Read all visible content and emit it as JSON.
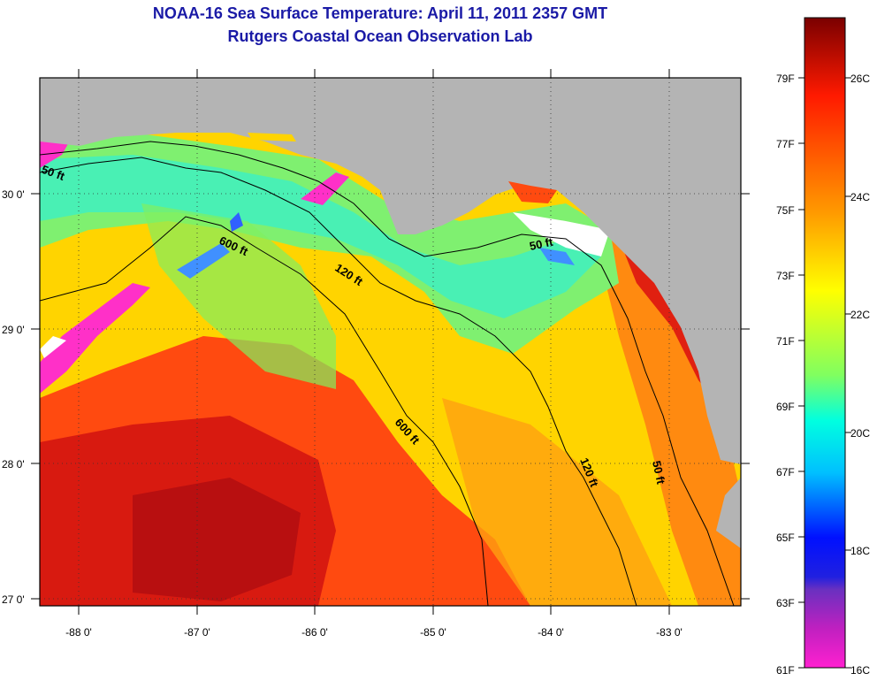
{
  "title": "NOAA-16 Sea Surface Temperature:  April 11, 2011 2357 GMT",
  "subtitle": "Rutgers Coastal Ocean Observation Lab",
  "map": {
    "lon_labels": [
      "-88 0'",
      "-87 0'",
      "-86 0'",
      "-85 0'",
      "-84 0'",
      "-83 0'"
    ],
    "lat_labels": [
      "30 0'",
      "29 0'",
      "28 0'",
      "27 0'"
    ],
    "contours": [
      "50 ft",
      "600 ft",
      "120 ft",
      "50 ft",
      "600 ft",
      "120 ft",
      "50 ft"
    ]
  },
  "colorbar": {
    "fahrenheit": [
      "79F",
      "77F",
      "75F",
      "73F",
      "71F",
      "69F",
      "67F",
      "65F",
      "63F",
      "61F"
    ],
    "celsius": [
      "26C",
      "24C",
      "22C",
      "20C",
      "18C",
      "16C"
    ]
  }
}
